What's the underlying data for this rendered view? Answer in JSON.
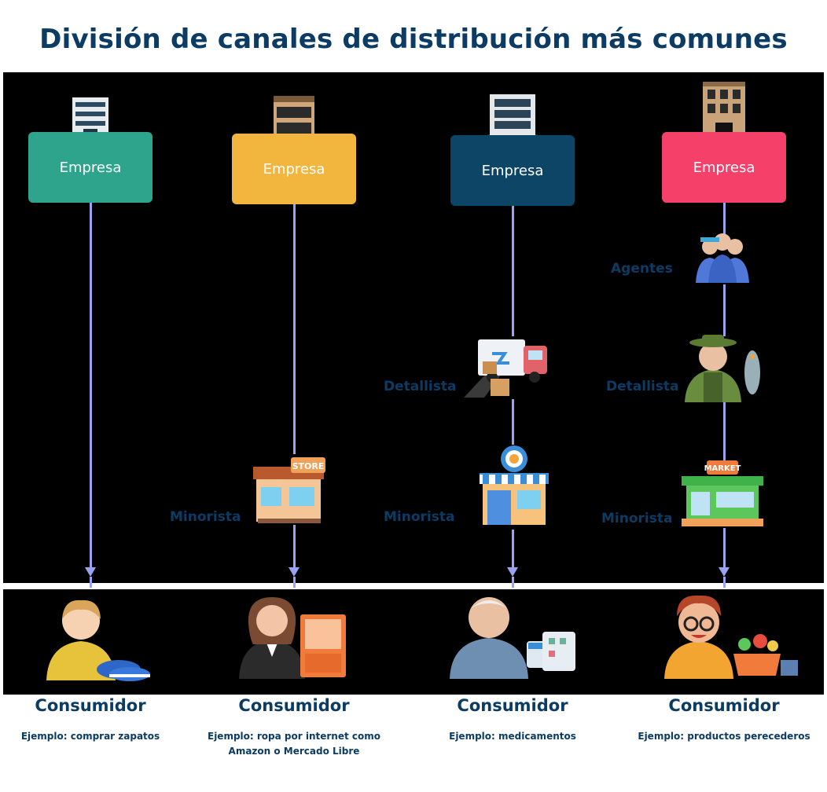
{
  "title": "División de canales de distribución más comunes",
  "colors": {
    "dark_blue": "#0c3b63",
    "line": "#9aa3f2",
    "teal": "#2fa48c",
    "yellow": "#f2b53e",
    "navy": "#0d4567",
    "pink": "#f5406a"
  },
  "channels": [
    {
      "company_label": "Empresa",
      "intermediaries": [],
      "consumer_label": "Consumidor",
      "consumer_desc": "Ejemplo: comprar zapatos"
    },
    {
      "company_label": "Empresa",
      "intermediaries": [
        {
          "label": "Minorista",
          "icon": "store-icon"
        }
      ],
      "consumer_label": "Consumidor",
      "consumer_desc": "Ejemplo: ropa por internet como Amazon o Mercado Libre"
    },
    {
      "company_label": "Empresa",
      "intermediaries": [
        {
          "label": "Detallista",
          "icon": "delivery-truck-icon"
        },
        {
          "label": "Minorista",
          "icon": "pharmacy-icon"
        }
      ],
      "consumer_label": "Consumidor",
      "consumer_desc": "Ejemplo: medicamentos"
    },
    {
      "company_label": "Empresa",
      "intermediaries": [
        {
          "label": "Agentes",
          "icon": "agents-group-icon"
        },
        {
          "label": "Detallista",
          "icon": "fisherman-icon"
        },
        {
          "label": "Minorista",
          "icon": "market-icon"
        }
      ],
      "consumer_label": "Consumidor",
      "consumer_desc": "Ejemplo: productos perecederos"
    }
  ]
}
